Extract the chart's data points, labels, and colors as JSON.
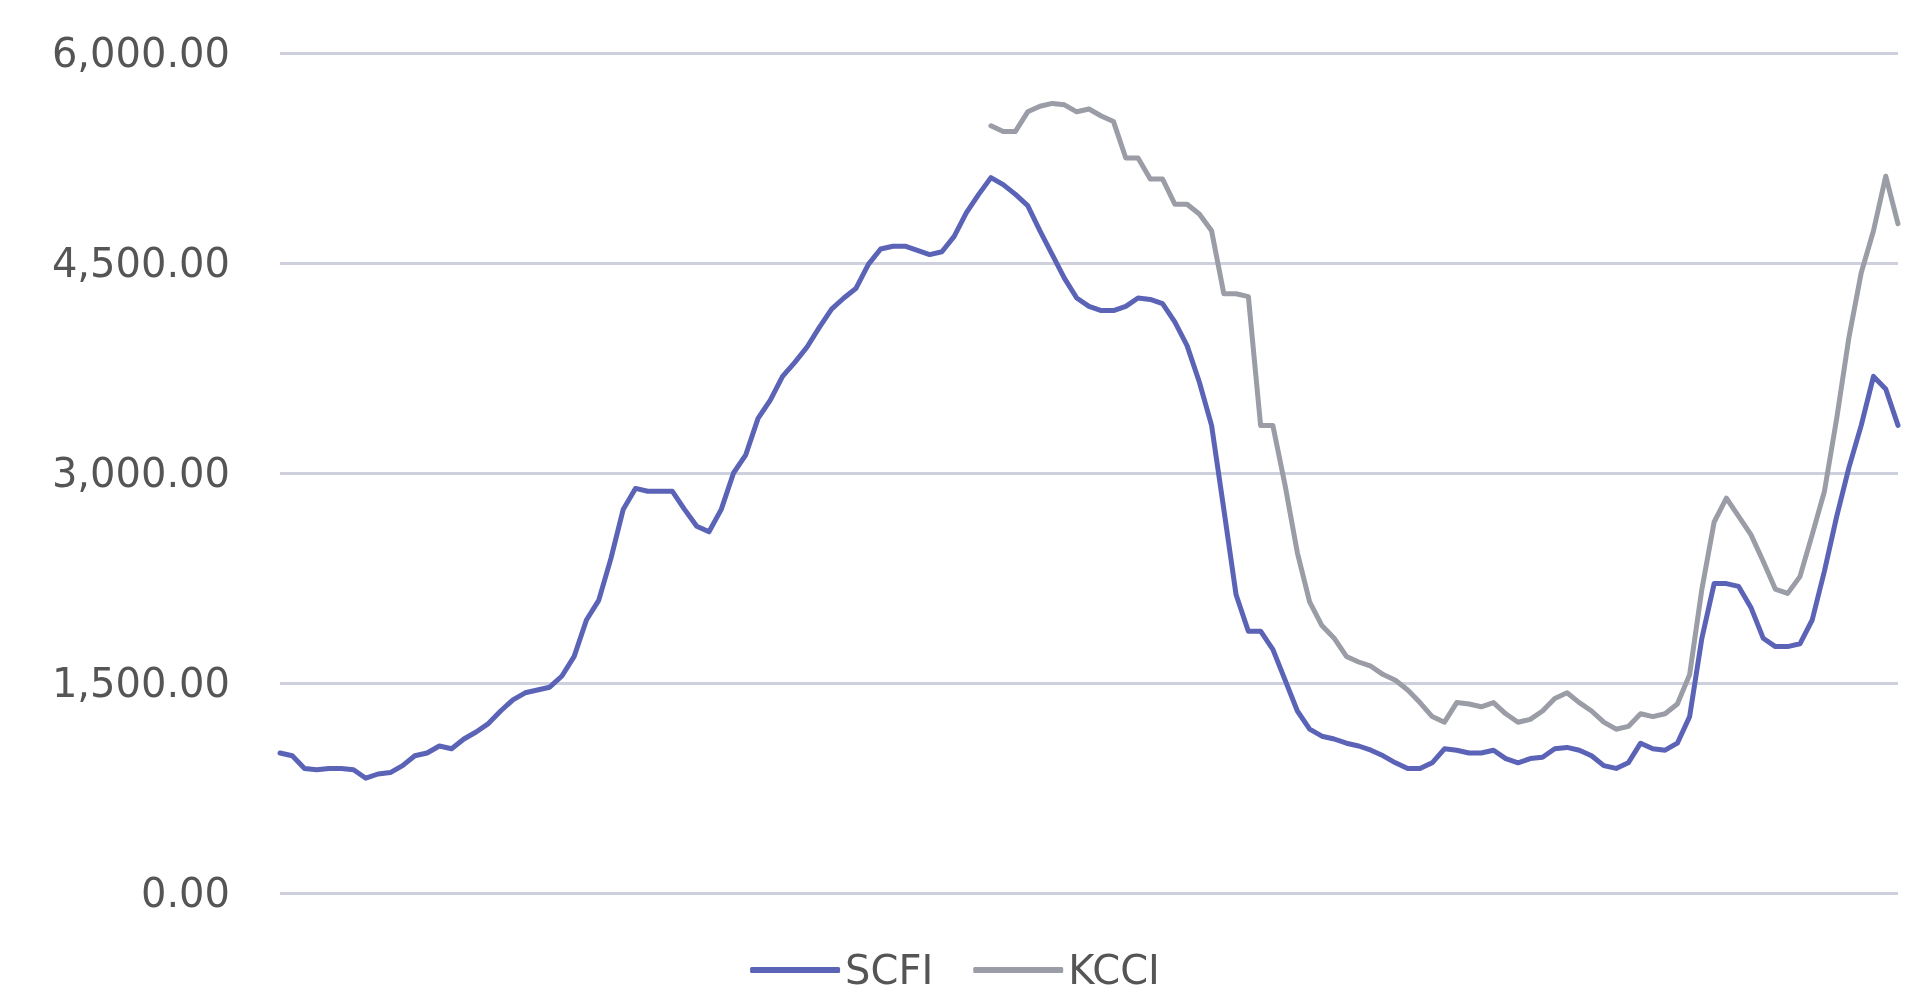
{
  "chart_data": {
    "type": "line",
    "categories": [
      null,
      null,
      null,
      null,
      null,
      null,
      null,
      null,
      null,
      null,
      null,
      null,
      null,
      null,
      null,
      null,
      null,
      null,
      null,
      null,
      null,
      null,
      null,
      null,
      null,
      null,
      null,
      null,
      null,
      null,
      null,
      null,
      null,
      null,
      null,
      null,
      null,
      null,
      null,
      null,
      null,
      null,
      null,
      null,
      null,
      null,
      null,
      null,
      null,
      null,
      null,
      null,
      null,
      null,
      null,
      null,
      null,
      null,
      null,
      null,
      null,
      null,
      null,
      null,
      null,
      null,
      null,
      null,
      null,
      null,
      null,
      null,
      null,
      null,
      null,
      null,
      null,
      null,
      null,
      null,
      null,
      null,
      null,
      null,
      null,
      null,
      null,
      null,
      null,
      null,
      null,
      null,
      null,
      null,
      null,
      null,
      null,
      null,
      null,
      null,
      null,
      null,
      null,
      null,
      null,
      null,
      null,
      null,
      null,
      null,
      null,
      null,
      null,
      null,
      null,
      null,
      null,
      null,
      null,
      null,
      null,
      null,
      null,
      null,
      null,
      null,
      null,
      null,
      null,
      null,
      null,
      null,
      null
    ],
    "series": [
      {
        "name": "SCFI",
        "color": "#5b63b7",
        "values": [
          1000,
          980,
          890,
          880,
          890,
          890,
          880,
          820,
          850,
          860,
          910,
          980,
          1000,
          1050,
          1030,
          1100,
          1150,
          1210,
          1300,
          1380,
          1430,
          1450,
          1470,
          1550,
          1690,
          1950,
          2090,
          2390,
          2740,
          2890,
          2870,
          2870,
          2870,
          2740,
          2620,
          2580,
          2740,
          3000,
          3130,
          3390,
          3520,
          3690,
          3790,
          3900,
          4040,
          4170,
          4250,
          4320,
          4490,
          4600,
          4620,
          4620,
          4590,
          4560,
          4580,
          4690,
          4860,
          4990,
          5110,
          5060,
          4990,
          4910,
          4730,
          4560,
          4390,
          4250,
          4190,
          4160,
          4160,
          4190,
          4250,
          4240,
          4210,
          4080,
          3910,
          3650,
          3340,
          2740,
          2130,
          1870,
          1870,
          1740,
          1520,
          1300,
          1170,
          1120,
          1100,
          1070,
          1050,
          1020,
          980,
          930,
          890,
          890,
          930,
          1030,
          1020,
          1000,
          1000,
          1020,
          960,
          930,
          960,
          970,
          1030,
          1040,
          1020,
          980,
          910,
          890,
          930,
          1070,
          1030,
          1020,
          1070,
          1260,
          1820,
          2210,
          2210,
          2190,
          2040,
          1820,
          1760,
          1760,
          1780,
          1950,
          2300,
          2690,
          3040,
          3340,
          3690,
          3600,
          3340
        ]
      },
      {
        "name": "KCCI",
        "color": "#9a9ca6",
        "values": [
          null,
          null,
          null,
          null,
          null,
          null,
          null,
          null,
          null,
          null,
          null,
          null,
          null,
          null,
          null,
          null,
          null,
          null,
          null,
          null,
          null,
          null,
          null,
          null,
          null,
          null,
          null,
          null,
          null,
          null,
          null,
          null,
          null,
          null,
          null,
          null,
          null,
          null,
          null,
          null,
          null,
          null,
          null,
          null,
          null,
          null,
          null,
          null,
          null,
          null,
          null,
          null,
          null,
          null,
          null,
          null,
          null,
          null,
          5480,
          5440,
          5440,
          5580,
          5620,
          5640,
          5630,
          5580,
          5600,
          5550,
          5510,
          5250,
          5250,
          5100,
          5100,
          4920,
          4920,
          4850,
          4730,
          4280,
          4280,
          4260,
          3340,
          3340,
          2910,
          2430,
          2080,
          1910,
          1820,
          1690,
          1650,
          1620,
          1560,
          1520,
          1450,
          1360,
          1260,
          1220,
          1360,
          1350,
          1330,
          1360,
          1280,
          1220,
          1240,
          1300,
          1390,
          1430,
          1360,
          1300,
          1220,
          1170,
          1190,
          1280,
          1260,
          1280,
          1350,
          1560,
          2170,
          2650,
          2820,
          2690,
          2560,
          2370,
          2170,
          2140,
          2260,
          2560,
          2870,
          3390,
          3970,
          4430,
          4730,
          5120,
          4780
        ]
      }
    ],
    "ylim": [
      0,
      6000
    ],
    "yticks": [
      {
        "value": 0,
        "label": "0.00"
      },
      {
        "value": 1500,
        "label": "1,500.00"
      },
      {
        "value": 3000,
        "label": "3,000.00"
      },
      {
        "value": 4500,
        "label": "4,500.00"
      },
      {
        "value": 6000,
        "label": "6,000.00"
      }
    ],
    "grid": "y",
    "legend": "bottom",
    "marker": "none",
    "line_style": "solid"
  }
}
